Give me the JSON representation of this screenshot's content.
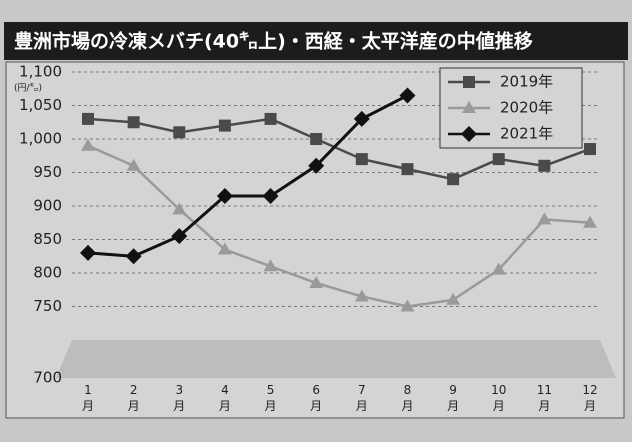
{
  "chart_data": {
    "type": "line",
    "title": "豊洲市場の冷凍メバチ(40㌔上)・西経・太平洋産の中値推移",
    "y_label": "(円/㌔)",
    "categories": [
      "1月",
      "2月",
      "3月",
      "4月",
      "5月",
      "6月",
      "7月",
      "8月",
      "9月",
      "10月",
      "11月",
      "12月"
    ],
    "series": [
      {
        "name": "2019年",
        "color": "#4a4a4a",
        "marker": "square",
        "values": [
          1030,
          1025,
          1010,
          1020,
          1030,
          1000,
          970,
          955,
          940,
          970,
          960,
          985
        ]
      },
      {
        "name": "2020年",
        "color": "#9a9a9a",
        "marker": "triangle",
        "values": [
          990,
          960,
          895,
          835,
          810,
          785,
          765,
          750,
          760,
          805,
          880,
          875
        ]
      },
      {
        "name": "2021年",
        "color": "#111111",
        "marker": "diamond",
        "values": [
          830,
          825,
          855,
          915,
          915,
          960,
          1030,
          1065,
          null,
          null,
          null,
          null
        ]
      }
    ],
    "ylim": [
      700,
      1100
    ],
    "yticks": [
      700,
      750,
      800,
      850,
      900,
      950,
      {
        "value": 1000,
        "label": "1,000"
      },
      {
        "value": 1050,
        "label": "1,050"
      },
      {
        "value": 1100,
        "label": "1,100"
      }
    ],
    "grid": true,
    "legend": "upper right"
  }
}
